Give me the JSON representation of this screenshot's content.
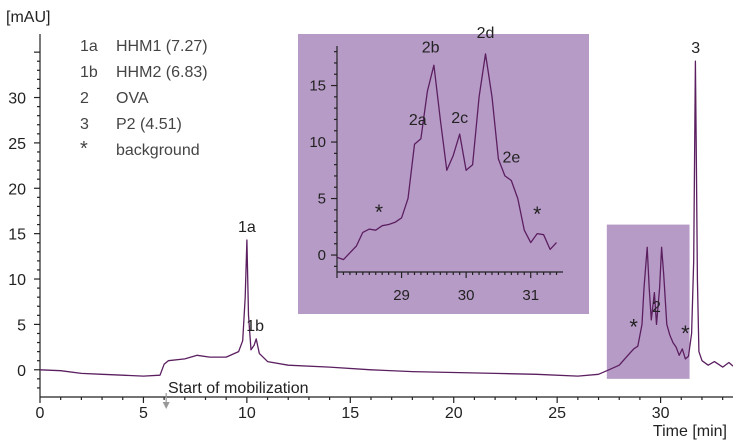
{
  "chart_data": {
    "type": "line",
    "title": "",
    "y_unit_label": "[mAU]",
    "x_axis_label": "Time [min]",
    "xlim": [
      0,
      33.5
    ],
    "ylim": [
      -3,
      37
    ],
    "x_ticks": [
      "0",
      "5",
      "10",
      "15",
      "20",
      "25",
      "30"
    ],
    "y_ticks": [
      "0",
      "5",
      "10",
      "15",
      "20",
      "25",
      "30"
    ],
    "legend": [
      {
        "key": "1a",
        "label": "HHM1 (7.27)"
      },
      {
        "key": "1b",
        "label": "HHM2 (6.83)"
      },
      {
        "key": "2",
        "label": "OVA"
      },
      {
        "key": "3",
        "label": "P2 (4.51)"
      },
      {
        "key": "*",
        "label": "background"
      }
    ],
    "annotation": "Start of mobilization",
    "annotation_x": 6.1,
    "peak_labels": [
      {
        "text": "1a",
        "x": 10.0,
        "y": 14.3
      },
      {
        "text": "1b",
        "x": 10.4,
        "y": 3.4
      },
      {
        "text": "2",
        "x": 29.8,
        "y": 5.5
      },
      {
        "text": "3",
        "x": 31.7,
        "y": 34.0
      },
      {
        "text": "*",
        "x": 28.7,
        "y": 3.0
      },
      {
        "text": "*",
        "x": 31.2,
        "y": 2.3
      }
    ],
    "highlight_region": {
      "x": [
        27.4,
        31.4
      ],
      "y": [
        -1.0,
        16.0
      ],
      "color": "#b79bc7"
    },
    "trace_color": "#5b1f60",
    "series": {
      "x": [
        0,
        1,
        2,
        3,
        4,
        5,
        5.8,
        6.0,
        6.2,
        7,
        7.6,
        8.2,
        9,
        9.6,
        9.8,
        9.92,
        10.0,
        10.08,
        10.2,
        10.35,
        10.45,
        10.6,
        11,
        12,
        14,
        16,
        18,
        20,
        22,
        24,
        26,
        27.0,
        27.5,
        28.0,
        28.5,
        28.7,
        28.9,
        29.1,
        29.2,
        29.35,
        29.45,
        29.55,
        29.7,
        29.8,
        29.95,
        30.05,
        30.15,
        30.3,
        30.45,
        30.6,
        30.75,
        30.9,
        31.05,
        31.2,
        31.35,
        31.5,
        31.6,
        31.68,
        31.72,
        31.78,
        31.85,
        32.0,
        32.3,
        32.6,
        33.0,
        33.3,
        33.5
      ],
      "y": [
        0,
        -0.1,
        -0.4,
        -0.5,
        -0.6,
        -0.7,
        -0.6,
        0.6,
        1.0,
        1.2,
        1.6,
        1.4,
        1.4,
        2.0,
        3.2,
        8.0,
        14.3,
        6.0,
        2.2,
        2.7,
        3.4,
        1.8,
        0.9,
        0.5,
        0.3,
        0.0,
        -0.2,
        -0.3,
        -0.4,
        -0.5,
        -0.7,
        -0.5,
        0.0,
        0.5,
        1.8,
        2.3,
        2.6,
        5.0,
        9.0,
        13.5,
        9.0,
        5.5,
        8.5,
        5.0,
        9.0,
        13.5,
        10.5,
        5.0,
        3.8,
        3.0,
        2.5,
        1.6,
        2.3,
        1.2,
        1.5,
        4.0,
        12.0,
        34.0,
        25.0,
        10.0,
        2.0,
        1.0,
        0.5,
        0.9,
        0.3,
        0.8,
        0.4
      ]
    },
    "inset": {
      "xlim": [
        28.0,
        31.5
      ],
      "ylim": [
        -1.5,
        18.5
      ],
      "x_ticks": [
        "29",
        "30",
        "31"
      ],
      "y_ticks": [
        "0",
        "5",
        "10",
        "15"
      ],
      "peak_labels": [
        {
          "text": "2a",
          "x": 29.25,
          "y": 10.8
        },
        {
          "text": "2b",
          "x": 29.45,
          "y": 17.2
        },
        {
          "text": "2c",
          "x": 29.9,
          "y": 11.0
        },
        {
          "text": "2d",
          "x": 30.3,
          "y": 18.5
        },
        {
          "text": "2e",
          "x": 30.7,
          "y": 7.5
        },
        {
          "text": "*",
          "x": 28.65,
          "y": 2.5
        },
        {
          "text": "*",
          "x": 31.1,
          "y": 2.3
        }
      ],
      "series": {
        "x": [
          28.0,
          28.1,
          28.2,
          28.3,
          28.4,
          28.5,
          28.6,
          28.7,
          28.8,
          28.9,
          29.0,
          29.1,
          29.2,
          29.3,
          29.4,
          29.5,
          29.6,
          29.7,
          29.8,
          29.9,
          30.0,
          30.1,
          30.2,
          30.3,
          30.4,
          30.5,
          30.6,
          30.7,
          30.8,
          30.9,
          31.0,
          31.1,
          31.2,
          31.3,
          31.4
        ],
        "y": [
          -0.2,
          -0.4,
          0.2,
          0.8,
          2.0,
          2.3,
          2.2,
          2.6,
          2.7,
          2.9,
          3.3,
          5.0,
          9.8,
          10.3,
          14.5,
          16.8,
          12.0,
          7.5,
          8.8,
          10.7,
          7.5,
          8.0,
          14.0,
          17.8,
          14.0,
          8.5,
          7.0,
          6.6,
          5.0,
          2.2,
          1.1,
          1.9,
          1.8,
          0.5,
          1.1
        ]
      }
    }
  }
}
